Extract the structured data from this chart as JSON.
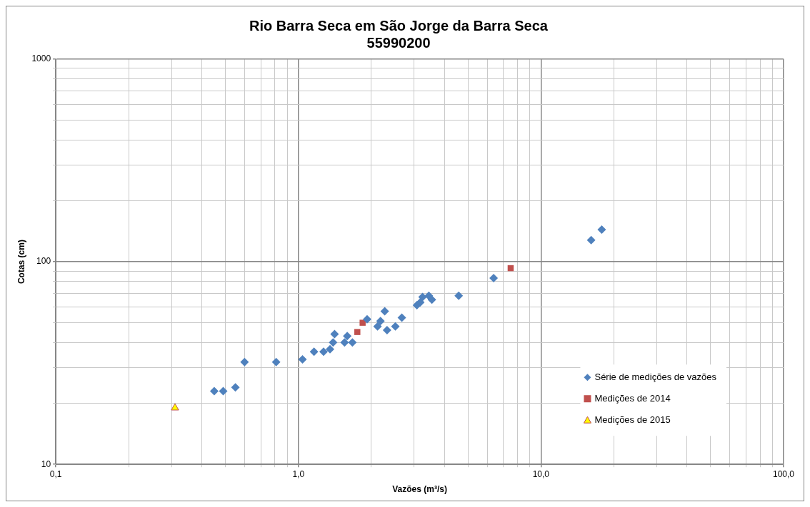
{
  "chart_data": {
    "type": "scatter",
    "title": "Rio Barra Seca em São Jorge da Barra Seca\n55990200",
    "xlabel": "Vazões (m³/s)",
    "ylabel": "Cotas (cm)",
    "log": "xy",
    "grid": true,
    "legend": "bottom right",
    "xlim": [
      0.1,
      100
    ],
    "ylim": [
      10,
      1000
    ],
    "xticks": [
      {
        "value": 0.1,
        "label": "0,1"
      },
      {
        "value": 0.2,
        "label": null
      },
      {
        "value": 0.3,
        "label": null
      },
      {
        "value": 0.4,
        "label": null
      },
      {
        "value": 0.5,
        "label": null
      },
      {
        "value": 0.6,
        "label": null
      },
      {
        "value": 0.7,
        "label": null
      },
      {
        "value": 0.8,
        "label": null
      },
      {
        "value": 0.9,
        "label": null
      },
      {
        "value": 1,
        "label": "1,0"
      },
      {
        "value": 2,
        "label": null
      },
      {
        "value": 3,
        "label": null
      },
      {
        "value": 4,
        "label": null
      },
      {
        "value": 5,
        "label": null
      },
      {
        "value": 6,
        "label": null
      },
      {
        "value": 7,
        "label": null
      },
      {
        "value": 8,
        "label": null
      },
      {
        "value": 9,
        "label": null
      },
      {
        "value": 10,
        "label": "10,0"
      },
      {
        "value": 20,
        "label": null
      },
      {
        "value": 30,
        "label": null
      },
      {
        "value": 40,
        "label": null
      },
      {
        "value": 50,
        "label": null
      },
      {
        "value": 60,
        "label": null
      },
      {
        "value": 70,
        "label": null
      },
      {
        "value": 80,
        "label": null
      },
      {
        "value": 90,
        "label": null
      },
      {
        "value": 100,
        "label": "100,0"
      }
    ],
    "yticks": [
      10,
      {
        "value": 20,
        "label": null
      },
      {
        "value": 30,
        "label": null
      },
      {
        "value": 40,
        "label": null
      },
      {
        "value": 50,
        "label": null
      },
      {
        "value": 60,
        "label": null
      },
      {
        "value": 70,
        "label": null
      },
      {
        "value": 80,
        "label": null
      },
      {
        "value": 90,
        "label": null
      },
      100,
      {
        "value": 200,
        "label": null
      },
      {
        "value": 300,
        "label": null
      },
      {
        "value": 400,
        "label": null
      },
      {
        "value": 500,
        "label": null
      },
      {
        "value": 600,
        "label": null
      },
      {
        "value": 700,
        "label": null
      },
      {
        "value": 800,
        "label": null
      },
      {
        "value": 900,
        "label": null
      },
      1000
    ],
    "series": [
      {
        "name": "Série de medições de vazões",
        "color": "#4f81bd",
        "marker": "diamond",
        "x": [
          0.45,
          0.49,
          0.55,
          0.6,
          0.81,
          1.04,
          1.16,
          1.27,
          1.35,
          1.39,
          1.41,
          1.55,
          1.59,
          1.67,
          1.92,
          2.12,
          2.18,
          2.32,
          2.27,
          2.51,
          2.67,
          3.08,
          3.18,
          3.25,
          3.45,
          3.55,
          4.58,
          6.38,
          16.1,
          17.8
        ],
        "values": [
          23,
          23,
          24,
          32,
          32,
          33,
          36,
          36,
          37,
          40,
          44,
          40,
          43,
          40,
          52,
          48,
          51,
          46,
          57,
          48,
          53,
          61,
          63,
          67,
          68,
          65,
          68,
          83,
          128,
          144
        ]
      },
      {
        "name": "Medições de 2014",
        "color": "#c0504d",
        "marker": "square",
        "x": [
          1.75,
          1.84,
          7.5
        ],
        "values": [
          45,
          50,
          93
        ]
      },
      {
        "name": "Medições de 2015",
        "color": "#ffff00",
        "marker": "triangle",
        "x": [
          0.31
        ],
        "values": [
          19
        ]
      }
    ]
  }
}
